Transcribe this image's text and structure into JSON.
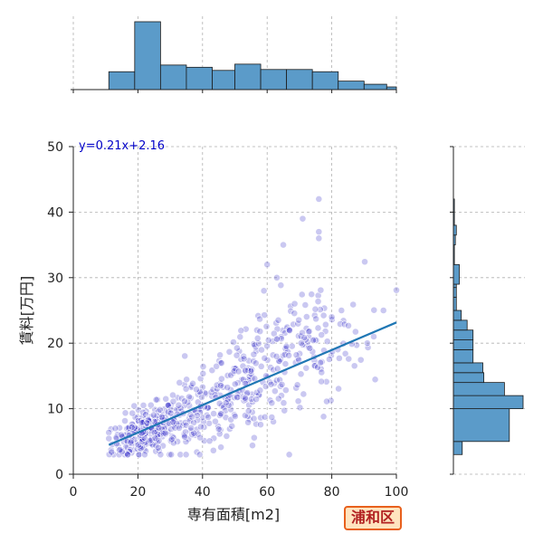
{
  "chart_data": {
    "type": "scatter",
    "xlabel": "専有面積[m2]",
    "ylabel": "賃料[万円]",
    "xlim": [
      0,
      100
    ],
    "ylim": [
      0,
      50
    ],
    "x_ticks": [
      0,
      20,
      40,
      60,
      80,
      100
    ],
    "y_ticks": [
      0,
      10,
      20,
      30,
      40,
      50
    ],
    "grid": true,
    "regression": {
      "label": "y=0.21x+2.16",
      "slope": 0.21,
      "intercept": 2.16,
      "x_range": [
        11,
        100
      ]
    },
    "scatter_clusters": [
      {
        "x_mean": 22,
        "x_sd": 5,
        "y_mean": 6.5,
        "y_sd": 1.8,
        "count": 230
      },
      {
        "x_mean": 38,
        "x_sd": 8,
        "y_mean": 9.5,
        "y_sd": 2.8,
        "count": 150
      },
      {
        "x_mean": 55,
        "x_sd": 7,
        "y_mean": 14,
        "y_sd": 4,
        "count": 140
      },
      {
        "x_mean": 72,
        "x_sd": 9,
        "y_mean": 19,
        "y_sd": 5,
        "count": 130
      }
    ],
    "scatter_outliers": [
      [
        76,
        42
      ],
      [
        71,
        39
      ],
      [
        76,
        37
      ],
      [
        76,
        36
      ],
      [
        65,
        35
      ],
      [
        60,
        32
      ],
      [
        63,
        30
      ],
      [
        59,
        28
      ],
      [
        83,
        25
      ],
      [
        80,
        24
      ],
      [
        96,
        25
      ],
      [
        93,
        21
      ],
      [
        91,
        20
      ]
    ],
    "x_histogram": {
      "bin_edges": [
        0,
        11,
        19,
        27,
        35,
        43,
        50,
        58,
        66,
        74,
        82,
        90,
        97,
        100
      ],
      "counts": [
        0,
        40,
        152,
        55,
        50,
        43,
        57,
        45,
        45,
        40,
        19,
        12,
        6
      ]
    },
    "y_histogram": {
      "bin_edges": [
        3,
        5,
        10,
        12,
        14,
        15.5,
        17,
        19,
        20.5,
        22,
        23.5,
        25,
        27,
        28.5,
        29,
        32,
        35,
        36.5,
        38,
        40,
        42
      ],
      "counts": [
        9,
        57,
        71,
        52,
        31,
        30,
        20,
        20,
        20,
        14,
        8,
        3,
        3,
        3,
        6,
        1,
        2,
        3,
        1,
        1
      ]
    },
    "colors": {
      "points": "#2a22c8",
      "regression": "#1f77b4",
      "histogram": "#5b9bc9"
    }
  },
  "ward_badge": "浦和区"
}
